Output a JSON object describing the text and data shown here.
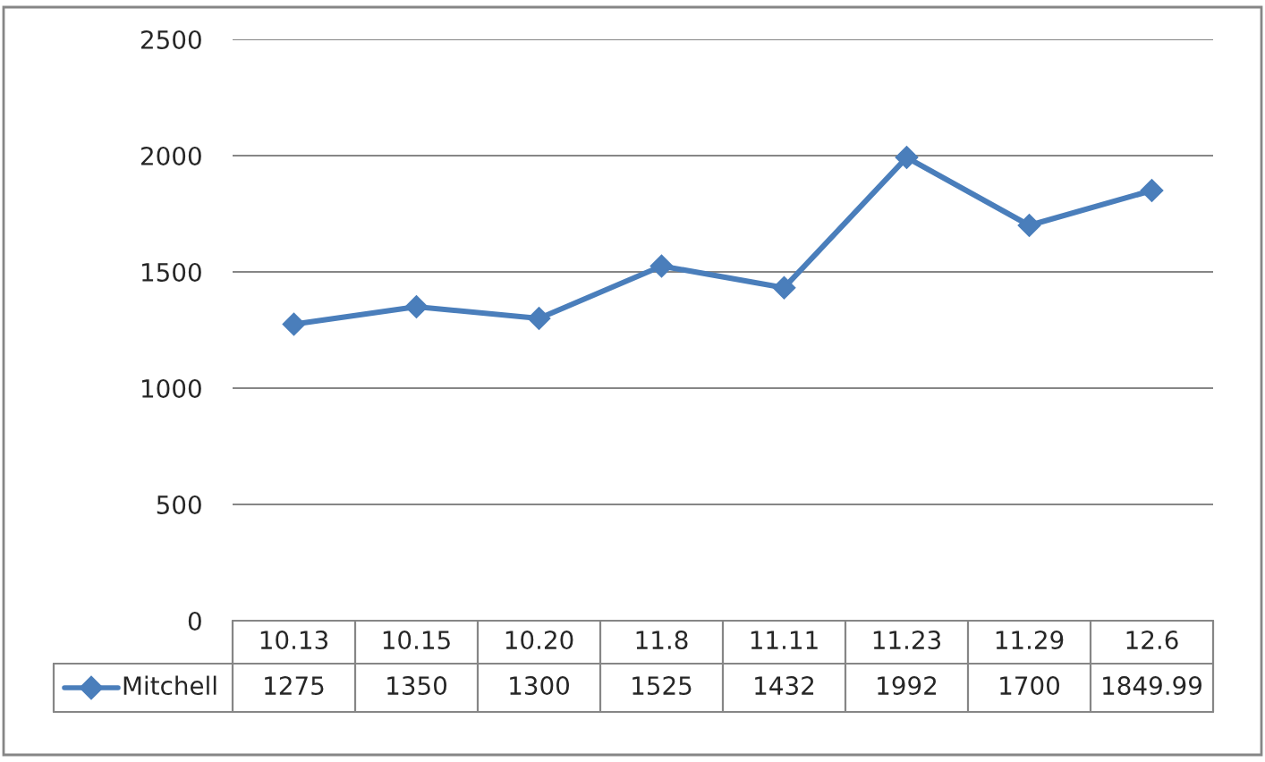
{
  "chart_data": {
    "type": "line",
    "categories": [
      "10.13",
      "10.15",
      "10.20",
      "11.8",
      "11.11",
      "11.23",
      "11.29",
      "12.6"
    ],
    "series": [
      {
        "name": "Mitchell",
        "color": "#4a7ebb",
        "values": [
          1275,
          1350,
          1300,
          1525,
          1432,
          1992,
          1700,
          1849.99
        ]
      }
    ],
    "ylim": [
      0,
      2500
    ],
    "yticks": [
      0,
      500,
      1000,
      1500,
      2000,
      2500
    ],
    "grid": "y",
    "marker": "diamond",
    "line_style": "solid",
    "legend": "bottom",
    "data_labels": true
  }
}
